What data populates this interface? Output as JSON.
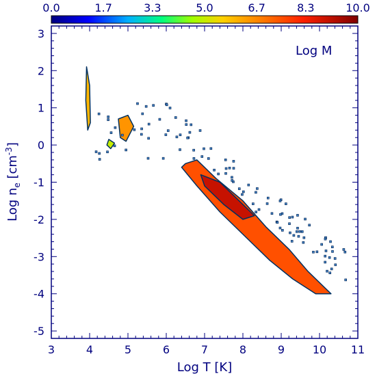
{
  "chart_data": {
    "type": "heatmap",
    "title": "",
    "panel_label": "Log M",
    "xlabel": "Log T [K]",
    "ylabel": {
      "prefix": "Log n",
      "subscript": "e",
      "units_prefix": " [cm",
      "superscript": "-3",
      "units_suffix": "]"
    },
    "xlim": [
      3,
      11
    ],
    "ylim": [
      -5.2,
      3.2
    ],
    "x_ticks": [
      3,
      4,
      5,
      6,
      7,
      8,
      9,
      10,
      11
    ],
    "y_ticks": [
      -5,
      -4,
      -3,
      -2,
      -1,
      0,
      1,
      2,
      3
    ],
    "colorbar": {
      "range": [
        0.0,
        10.0
      ],
      "tick_values": [
        0.0,
        1.7,
        3.3,
        5.0,
        6.7,
        8.3,
        10.0
      ],
      "tick_labels": [
        "0.0",
        "1.7",
        "3.3",
        "5.0",
        "6.7",
        "8.3",
        "10.0"
      ]
    },
    "regions": [
      {
        "name": "main-ridge",
        "x": [
          6.5,
          6.8,
          7.3,
          8.0,
          8.6,
          9.2,
          9.7,
          10.2,
          10.3,
          9.9,
          9.3,
          8.7,
          8.1,
          7.4,
          6.8,
          6.4
        ],
        "y": [
          -0.5,
          -0.4,
          -0.9,
          -1.5,
          -2.2,
          -2.8,
          -3.4,
          -3.9,
          -4.0,
          -4.0,
          -3.6,
          -3.1,
          -2.5,
          -1.8,
          -1.1,
          -0.6
        ],
        "value": 7.5
      },
      {
        "name": "ridge-core",
        "x": [
          6.9,
          7.4,
          7.9,
          8.3,
          8.0,
          7.5,
          7.0
        ],
        "y": [
          -0.8,
          -1.0,
          -1.5,
          -1.9,
          -2.0,
          -1.6,
          -1.1
        ],
        "value": 9.0
      },
      {
        "name": "cool-spur",
        "x": [
          3.92,
          4.0,
          4.02,
          3.95,
          3.9
        ],
        "y": [
          2.1,
          1.6,
          0.6,
          0.4,
          1.2
        ],
        "value": 6.0
      },
      {
        "name": "blob-a",
        "x": [
          4.75,
          5.0,
          5.15,
          4.95,
          4.8
        ],
        "y": [
          0.7,
          0.8,
          0.5,
          0.1,
          0.2
        ],
        "value": 6.5
      },
      {
        "name": "blob-b",
        "x": [
          4.5,
          4.65,
          4.55,
          4.45
        ],
        "y": [
          0.15,
          0.05,
          -0.1,
          0.0
        ],
        "value": 5.0
      }
    ]
  }
}
